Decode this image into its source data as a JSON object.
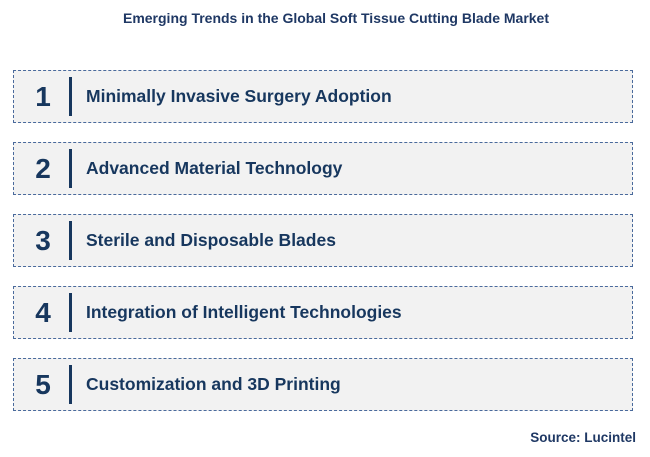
{
  "title": "Emerging Trends in the Global Soft Tissue Cutting Blade Market",
  "trends": [
    {
      "number": "1",
      "label": "Minimally Invasive Surgery Adoption"
    },
    {
      "number": "2",
      "label": "Advanced Material Technology"
    },
    {
      "number": "3",
      "label": "Sterile and Disposable Blades"
    },
    {
      "number": "4",
      "label": "Integration of Intelligent Technologies"
    },
    {
      "number": "5",
      "label": "Customization and 3D Printing"
    }
  ],
  "source": "Source: Lucintel",
  "colors": {
    "text": "#17375e",
    "box_fill": "#f2f2f2",
    "box_border": "#4a6a9c"
  }
}
